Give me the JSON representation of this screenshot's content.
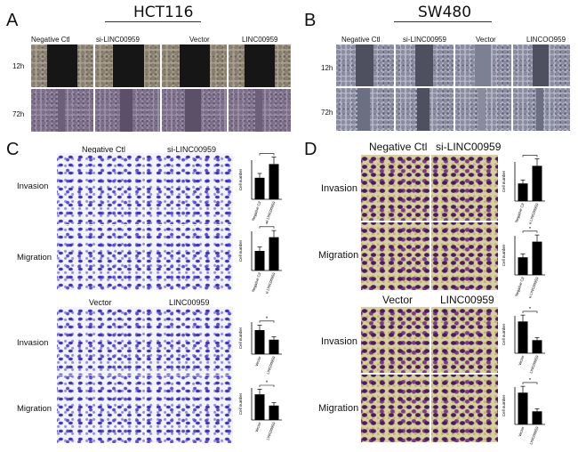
{
  "panels": {
    "A": {
      "letter": "A",
      "title": "HCT116",
      "columns": [
        "Negative Ctl",
        "si-LINC00959",
        "Vector",
        "LINC00959"
      ],
      "rows": [
        "12h",
        "72h"
      ]
    },
    "B": {
      "letter": "B",
      "title": "SW480",
      "columns": [
        "Negative Ctl",
        "si-LINC00959",
        "Vector",
        "LINCOO959"
      ],
      "rows": [
        "12h",
        "72h"
      ]
    },
    "C": {
      "letter": "C",
      "top": {
        "columns": [
          "Negative Ctl",
          "si-LINC00959"
        ],
        "rows": [
          "Invasion",
          "Migration"
        ]
      },
      "bottom": {
        "columns": [
          "Vector",
          "LINC00959"
        ],
        "rows": [
          "Invasion",
          "Migration"
        ]
      }
    },
    "D": {
      "letter": "D",
      "top": {
        "columns": [
          "Negative Ctl",
          "si-LINC00959"
        ],
        "rows": [
          "Invasion",
          "Migration"
        ]
      },
      "bottom": {
        "columns": [
          "Vector",
          "LINC00959"
        ],
        "rows": [
          "Invasion",
          "Migration"
        ]
      }
    }
  },
  "chart_data": [
    {
      "panel": "C",
      "type": "bar",
      "ylabel": "Cell number",
      "categories": [
        "Negative Ctl",
        "si-LINC00959"
      ],
      "values": [
        0.55,
        0.9
      ],
      "significance": "*"
    },
    {
      "panel": "C",
      "type": "bar",
      "ylabel": "Cell number",
      "categories": [
        "Negative Ctl",
        "si-LINC00959"
      ],
      "values": [
        0.5,
        0.85
      ],
      "significance": "*"
    },
    {
      "panel": "C",
      "type": "bar",
      "ylabel": "Cell number",
      "categories": [
        "Vector",
        "LINC00959"
      ],
      "values": [
        0.75,
        0.45
      ],
      "significance": "*"
    },
    {
      "panel": "C",
      "type": "bar",
      "ylabel": "Cell number",
      "categories": [
        "Vector",
        "LINC00959"
      ],
      "values": [
        0.8,
        0.45
      ],
      "significance": "*"
    },
    {
      "panel": "D",
      "type": "bar",
      "ylabel": "Cell number",
      "categories": [
        "Negative Ctl",
        "si-LINC00959"
      ],
      "values": [
        0.45,
        0.9
      ],
      "significance": "*"
    },
    {
      "panel": "D",
      "type": "bar",
      "ylabel": "Cell number",
      "categories": [
        "Negative Ctl",
        "si-LINC00959"
      ],
      "values": [
        0.45,
        0.85
      ],
      "significance": "*"
    },
    {
      "panel": "D",
      "type": "bar",
      "ylabel": "Cell number",
      "categories": [
        "Vector",
        "LINC00959"
      ],
      "values": [
        0.85,
        0.35
      ],
      "significance": "*"
    },
    {
      "panel": "D",
      "type": "bar",
      "ylabel": "Cell number",
      "categories": [
        "Vector",
        "LINC00959"
      ],
      "values": [
        0.85,
        0.35
      ],
      "significance": "*"
    }
  ]
}
